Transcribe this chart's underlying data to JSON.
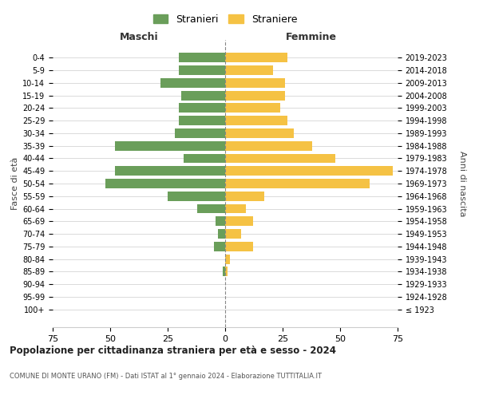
{
  "age_groups": [
    "100+",
    "95-99",
    "90-94",
    "85-89",
    "80-84",
    "75-79",
    "70-74",
    "65-69",
    "60-64",
    "55-59",
    "50-54",
    "45-49",
    "40-44",
    "35-39",
    "30-34",
    "25-29",
    "20-24",
    "15-19",
    "10-14",
    "5-9",
    "0-4"
  ],
  "birth_years": [
    "≤ 1923",
    "1924-1928",
    "1929-1933",
    "1934-1938",
    "1939-1943",
    "1944-1948",
    "1949-1953",
    "1954-1958",
    "1959-1963",
    "1964-1968",
    "1969-1973",
    "1974-1978",
    "1979-1983",
    "1984-1988",
    "1989-1993",
    "1994-1998",
    "1999-2003",
    "2004-2008",
    "2009-2013",
    "2014-2018",
    "2019-2023"
  ],
  "maschi": [
    0,
    0,
    0,
    1,
    0,
    5,
    3,
    4,
    12,
    25,
    52,
    48,
    18,
    48,
    22,
    20,
    20,
    19,
    28,
    20,
    20
  ],
  "femmine": [
    0,
    0,
    0,
    1,
    2,
    12,
    7,
    12,
    9,
    17,
    63,
    73,
    48,
    38,
    30,
    27,
    24,
    26,
    26,
    21,
    27
  ],
  "color_maschi": "#6a9e5a",
  "color_femmine": "#f5c244",
  "xlabel_left": "Maschi",
  "xlabel_right": "Femmine",
  "ylabel_left": "Fasce di età",
  "ylabel_right": "Anni di nascita",
  "title": "Popolazione per cittadinanza straniera per età e sesso - 2024",
  "subtitle": "COMUNE DI MONTE URANO (FM) - Dati ISTAT al 1° gennaio 2024 - Elaborazione TUTTITALIA.IT",
  "legend_stranieri": "Stranieri",
  "legend_straniere": "Straniere",
  "xlim": 75,
  "background_color": "#ffffff",
  "grid_color": "#cccccc"
}
